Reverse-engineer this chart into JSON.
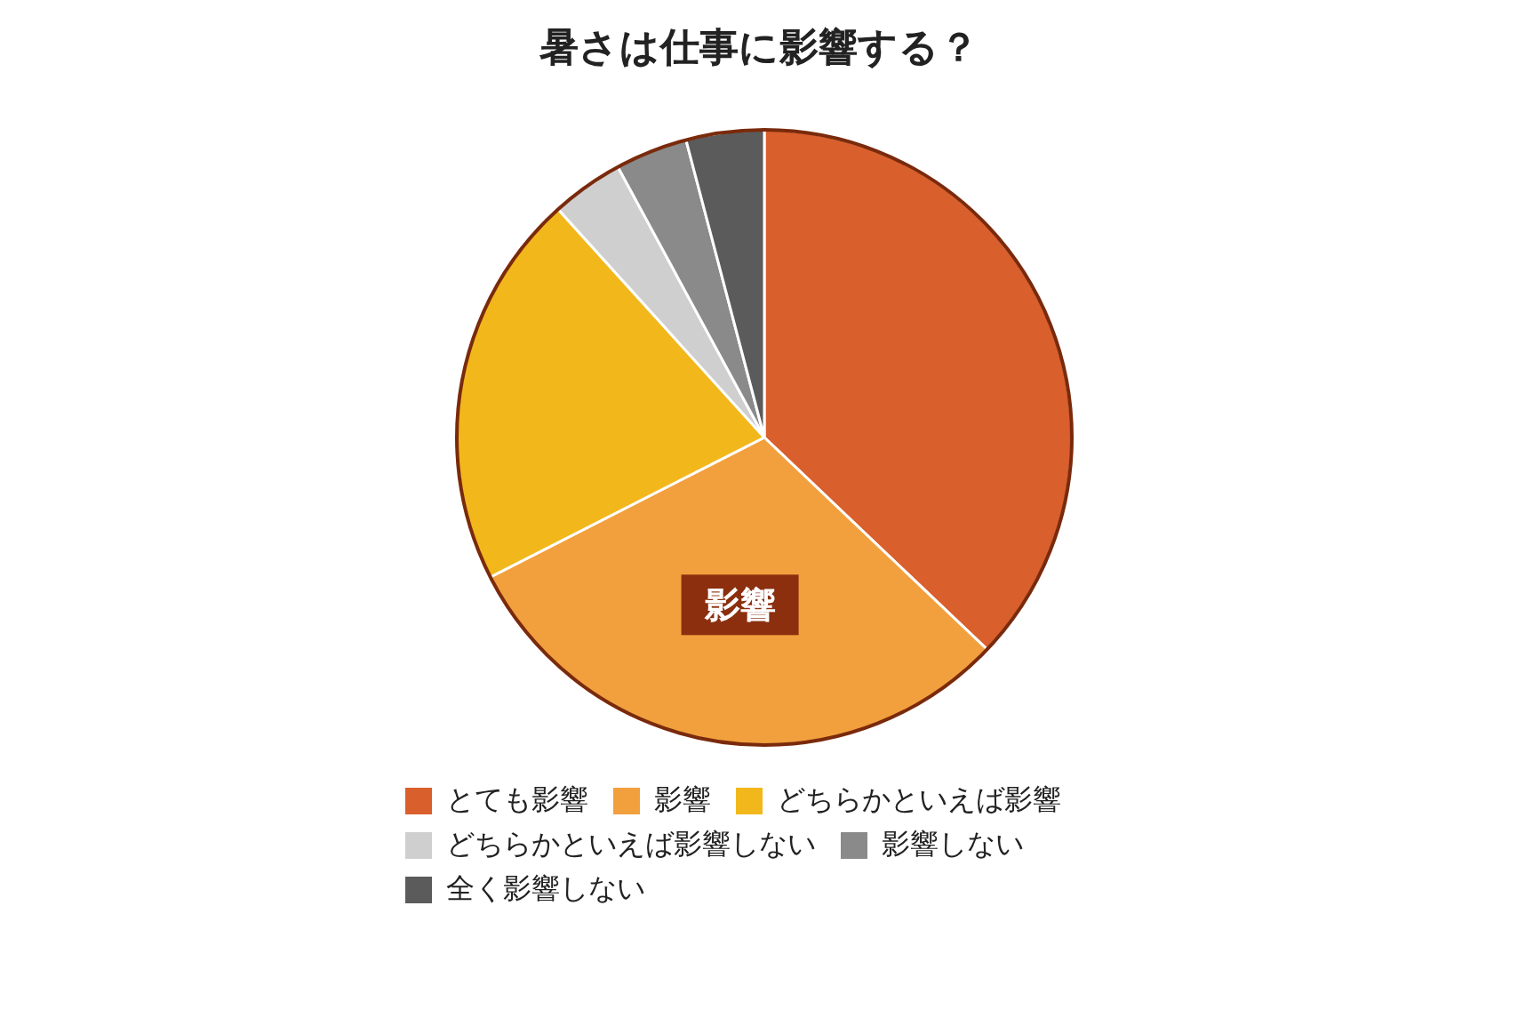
{
  "chart_data": {
    "type": "pie",
    "title": "暑さは仕事に影響する？",
    "categories": [
      "とても影響",
      "影響",
      "どちらかといえば影響",
      "どちらかといえば影響しない",
      "影響しない",
      "全く影響しない"
    ],
    "values": [
      37.1,
      30.4,
      20.8,
      3.8,
      3.8,
      4.1
    ],
    "colors": [
      "#d95f2d",
      "#f2a03d",
      "#f2b71b",
      "#cfcfcf",
      "#8a8a8a",
      "#5b5b5b"
    ],
    "annotations": [
      "影響"
    ],
    "legend": "bottom"
  }
}
